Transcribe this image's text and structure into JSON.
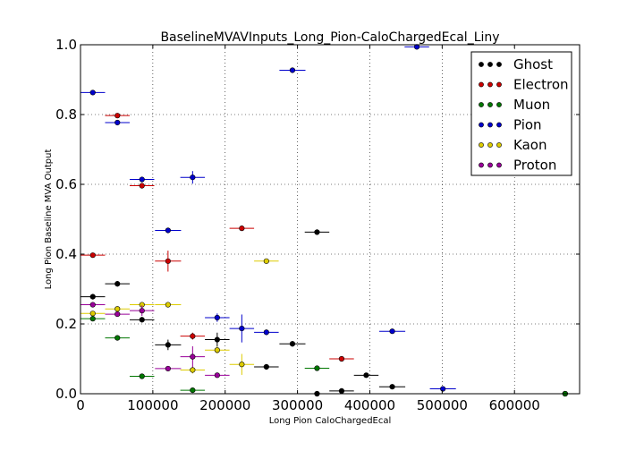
{
  "chart_data": {
    "type": "scatter",
    "title": "BaselineMVAVInputs_Long_Pion-CaloChargedEcal_Liny",
    "xlabel": "Long Pion CaloChargedEcal",
    "ylabel": "Long Pion Baseline MVA Output",
    "xlim": [
      0,
      690000
    ],
    "ylim": [
      0,
      1.0
    ],
    "xticks": [
      "0",
      "100000",
      "200000",
      "300000",
      "400000",
      "500000",
      "600000"
    ],
    "yticks": [
      "0.0",
      "0.2",
      "0.4",
      "0.6",
      "0.8",
      "1.0"
    ],
    "grid": true,
    "legend_position": "top-right",
    "series": [
      {
        "name": "Ghost",
        "color": "#000000",
        "points": [
          {
            "x": 17000,
            "y": 0.278,
            "xerr": 17000,
            "yerr": 0.008
          },
          {
            "x": 51000,
            "y": 0.315,
            "xerr": 17000,
            "yerr": 0.008
          },
          {
            "x": 85000,
            "y": 0.212,
            "xerr": 17000,
            "yerr": 0.008
          },
          {
            "x": 121000,
            "y": 0.14,
            "xerr": 18000,
            "yerr": 0.015
          },
          {
            "x": 189000,
            "y": 0.155,
            "xerr": 17000,
            "yerr": 0.02
          },
          {
            "x": 257000,
            "y": 0.077,
            "xerr": 17000,
            "yerr": 0.008
          },
          {
            "x": 293000,
            "y": 0.143,
            "xerr": 18000,
            "yerr": 0.008
          },
          {
            "x": 327000,
            "y": 0.463,
            "xerr": 17000,
            "yerr": 0.008
          },
          {
            "x": 361000,
            "y": 0.008,
            "xerr": 17000,
            "yerr": 0.005
          },
          {
            "x": 395000,
            "y": 0.053,
            "xerr": 17000,
            "yerr": 0.006
          },
          {
            "x": 431000,
            "y": 0.02,
            "xerr": 18000,
            "yerr": 0.005
          },
          {
            "x": 327000,
            "y": 0.0,
            "xerr": 0,
            "yerr": 0.005
          },
          {
            "x": 670000,
            "y": 0.0,
            "xerr": 0,
            "yerr": 0.004
          }
        ]
      },
      {
        "name": "Electron",
        "color": "#cc0000",
        "points": [
          {
            "x": 17000,
            "y": 0.397,
            "xerr": 17000,
            "yerr": 0.006
          },
          {
            "x": 51000,
            "y": 0.797,
            "xerr": 17000,
            "yerr": 0.006
          },
          {
            "x": 85000,
            "y": 0.596,
            "xerr": 17000,
            "yerr": 0.008
          },
          {
            "x": 121000,
            "y": 0.38,
            "xerr": 18000,
            "yerr": 0.03
          },
          {
            "x": 155000,
            "y": 0.165,
            "xerr": 17000,
            "yerr": 0.01
          },
          {
            "x": 223000,
            "y": 0.474,
            "xerr": 17000,
            "yerr": 0.006
          },
          {
            "x": 361000,
            "y": 0.1,
            "xerr": 17000,
            "yerr": 0.006
          }
        ]
      },
      {
        "name": "Muon",
        "color": "#007700",
        "points": [
          {
            "x": 17000,
            "y": 0.215,
            "xerr": 17000,
            "yerr": 0.006
          },
          {
            "x": 51000,
            "y": 0.16,
            "xerr": 17000,
            "yerr": 0.006
          },
          {
            "x": 85000,
            "y": 0.05,
            "xerr": 17000,
            "yerr": 0.006
          },
          {
            "x": 155000,
            "y": 0.01,
            "xerr": 17000,
            "yerr": 0.005
          },
          {
            "x": 327000,
            "y": 0.073,
            "xerr": 17000,
            "yerr": 0.006
          },
          {
            "x": 670000,
            "y": 0.0,
            "xerr": 17000,
            "yerr": 0.004
          }
        ]
      },
      {
        "name": "Pion",
        "color": "#0000cc",
        "points": [
          {
            "x": 17000,
            "y": 0.863,
            "xerr": 17000,
            "yerr": 0.006
          },
          {
            "x": 51000,
            "y": 0.777,
            "xerr": 17000,
            "yerr": 0.006
          },
          {
            "x": 85000,
            "y": 0.614,
            "xerr": 17000,
            "yerr": 0.008
          },
          {
            "x": 121000,
            "y": 0.468,
            "xerr": 18000,
            "yerr": 0.006
          },
          {
            "x": 155000,
            "y": 0.62,
            "xerr": 17000,
            "yerr": 0.018
          },
          {
            "x": 189000,
            "y": 0.218,
            "xerr": 17000,
            "yerr": 0.012
          },
          {
            "x": 223000,
            "y": 0.187,
            "xerr": 17000,
            "yerr": 0.04
          },
          {
            "x": 257000,
            "y": 0.176,
            "xerr": 17000,
            "yerr": 0.008
          },
          {
            "x": 293000,
            "y": 0.927,
            "xerr": 18000,
            "yerr": 0.006
          },
          {
            "x": 431000,
            "y": 0.179,
            "xerr": 18000,
            "yerr": 0.006
          },
          {
            "x": 465000,
            "y": 0.994,
            "xerr": 17000,
            "yerr": 0.004
          },
          {
            "x": 501000,
            "y": 0.014,
            "xerr": 18000,
            "yerr": 0.005
          }
        ]
      },
      {
        "name": "Kaon",
        "color": "#ddcc00",
        "points": [
          {
            "x": 17000,
            "y": 0.23,
            "xerr": 17000,
            "yerr": 0.006
          },
          {
            "x": 51000,
            "y": 0.243,
            "xerr": 17000,
            "yerr": 0.006
          },
          {
            "x": 85000,
            "y": 0.255,
            "xerr": 17000,
            "yerr": 0.006
          },
          {
            "x": 121000,
            "y": 0.255,
            "xerr": 18000,
            "yerr": 0.006
          },
          {
            "x": 155000,
            "y": 0.068,
            "xerr": 17000,
            "yerr": 0.01
          },
          {
            "x": 189000,
            "y": 0.125,
            "xerr": 17000,
            "yerr": 0.01
          },
          {
            "x": 223000,
            "y": 0.084,
            "xerr": 17000,
            "yerr": 0.03
          },
          {
            "x": 257000,
            "y": 0.38,
            "xerr": 17000,
            "yerr": 0.006
          }
        ]
      },
      {
        "name": "Proton",
        "color": "#990099",
        "points": [
          {
            "x": 17000,
            "y": 0.255,
            "xerr": 17000,
            "yerr": 0.006
          },
          {
            "x": 51000,
            "y": 0.228,
            "xerr": 17000,
            "yerr": 0.006
          },
          {
            "x": 85000,
            "y": 0.238,
            "xerr": 17000,
            "yerr": 0.015
          },
          {
            "x": 121000,
            "y": 0.072,
            "xerr": 18000,
            "yerr": 0.006
          },
          {
            "x": 155000,
            "y": 0.106,
            "xerr": 17000,
            "yerr": 0.03
          },
          {
            "x": 189000,
            "y": 0.053,
            "xerr": 17000,
            "yerr": 0.006
          }
        ]
      }
    ]
  }
}
